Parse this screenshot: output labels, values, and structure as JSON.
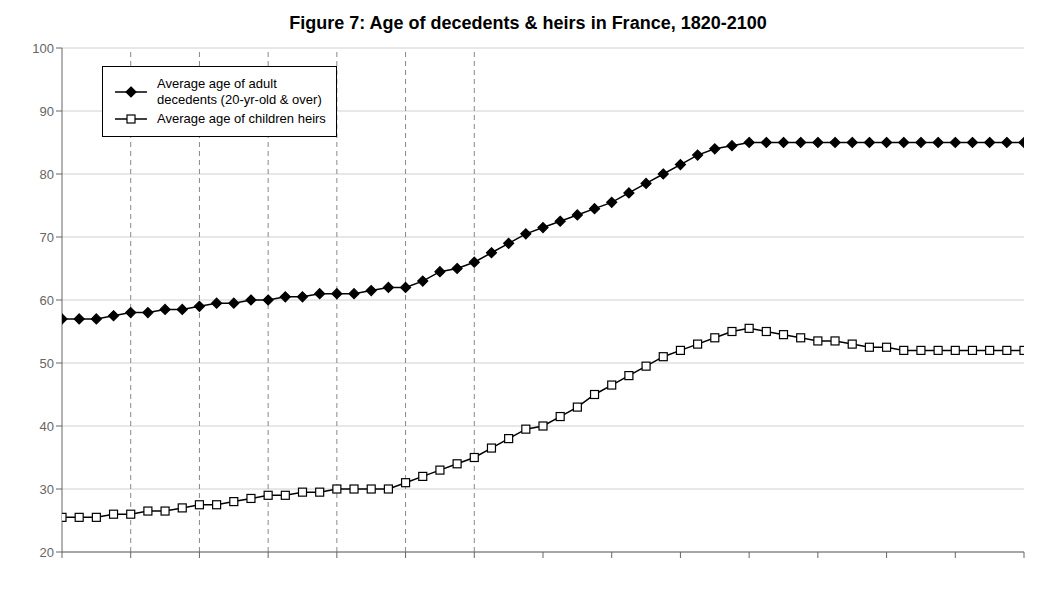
{
  "chart_data": {
    "type": "line",
    "title": "Figure 7: Age of decedents & heirs in France, 1820-2100",
    "x": [
      1820,
      1825,
      1830,
      1835,
      1840,
      1845,
      1850,
      1855,
      1860,
      1865,
      1870,
      1875,
      1880,
      1885,
      1890,
      1895,
      1900,
      1905,
      1910,
      1915,
      1920,
      1925,
      1930,
      1935,
      1940,
      1945,
      1950,
      1955,
      1960,
      1965,
      1970,
      1975,
      1980,
      1985,
      1990,
      1995,
      2000,
      2005,
      2010,
      2015,
      2020,
      2025,
      2030,
      2035,
      2040,
      2045,
      2050,
      2055,
      2060,
      2065,
      2070,
      2075,
      2080,
      2085,
      2090,
      2095,
      2100
    ],
    "series": [
      {
        "name": "Average age of adult\ndecedents (20-yr-old & over)",
        "color": "#000000",
        "marker": "diamond",
        "values": [
          57.0,
          57.0,
          57.0,
          57.5,
          58.0,
          58.0,
          58.5,
          58.5,
          59.0,
          59.5,
          59.5,
          60.0,
          60.0,
          60.5,
          60.5,
          61.0,
          61.0,
          61.0,
          61.5,
          62.0,
          62.0,
          63.0,
          64.5,
          65.0,
          66.0,
          67.5,
          69.0,
          70.5,
          71.5,
          72.5,
          73.5,
          74.5,
          75.5,
          77.0,
          78.5,
          80.0,
          81.5,
          83.0,
          84.0,
          84.5,
          85.0,
          85.0,
          85.0,
          85.0,
          85.0,
          85.0,
          85.0,
          85.0,
          85.0,
          85.0,
          85.0,
          85.0,
          85.0,
          85.0,
          85.0,
          85.0,
          85.0
        ]
      },
      {
        "name": "Average age of children heirs",
        "color": "#000000",
        "marker": "open_square",
        "values": [
          25.5,
          25.5,
          25.5,
          26.0,
          26.0,
          26.5,
          26.5,
          27.0,
          27.5,
          27.5,
          28.0,
          28.5,
          29.0,
          29.0,
          29.5,
          29.5,
          30.0,
          30.0,
          30.0,
          30.0,
          31.0,
          32.0,
          33.0,
          34.0,
          35.0,
          36.5,
          38.0,
          39.5,
          40.0,
          41.5,
          43.0,
          45.0,
          46.5,
          48.0,
          49.5,
          51.0,
          52.0,
          53.0,
          54.0,
          55.0,
          55.5,
          55.0,
          54.5,
          54.0,
          53.5,
          53.5,
          53.0,
          52.5,
          52.5,
          52.0,
          52.0,
          52.0,
          52.0,
          52.0,
          52.0,
          52.0,
          52.0
        ]
      }
    ],
    "xlim": [
      1820,
      2100
    ],
    "xticks": [
      1820,
      1840,
      1860,
      1880,
      1900,
      1920,
      1940,
      1960,
      1980,
      2000,
      2020,
      2040,
      2060,
      2080,
      2100
    ],
    "ylim": [
      20,
      100
    ],
    "yticks": [
      20,
      30,
      40,
      50,
      60,
      70,
      80,
      90,
      100
    ],
    "vlines": [
      1840,
      1860,
      1880,
      1900,
      1920,
      1940
    ],
    "grid": true,
    "legend": "upper left",
    "tick_labels": "y"
  }
}
